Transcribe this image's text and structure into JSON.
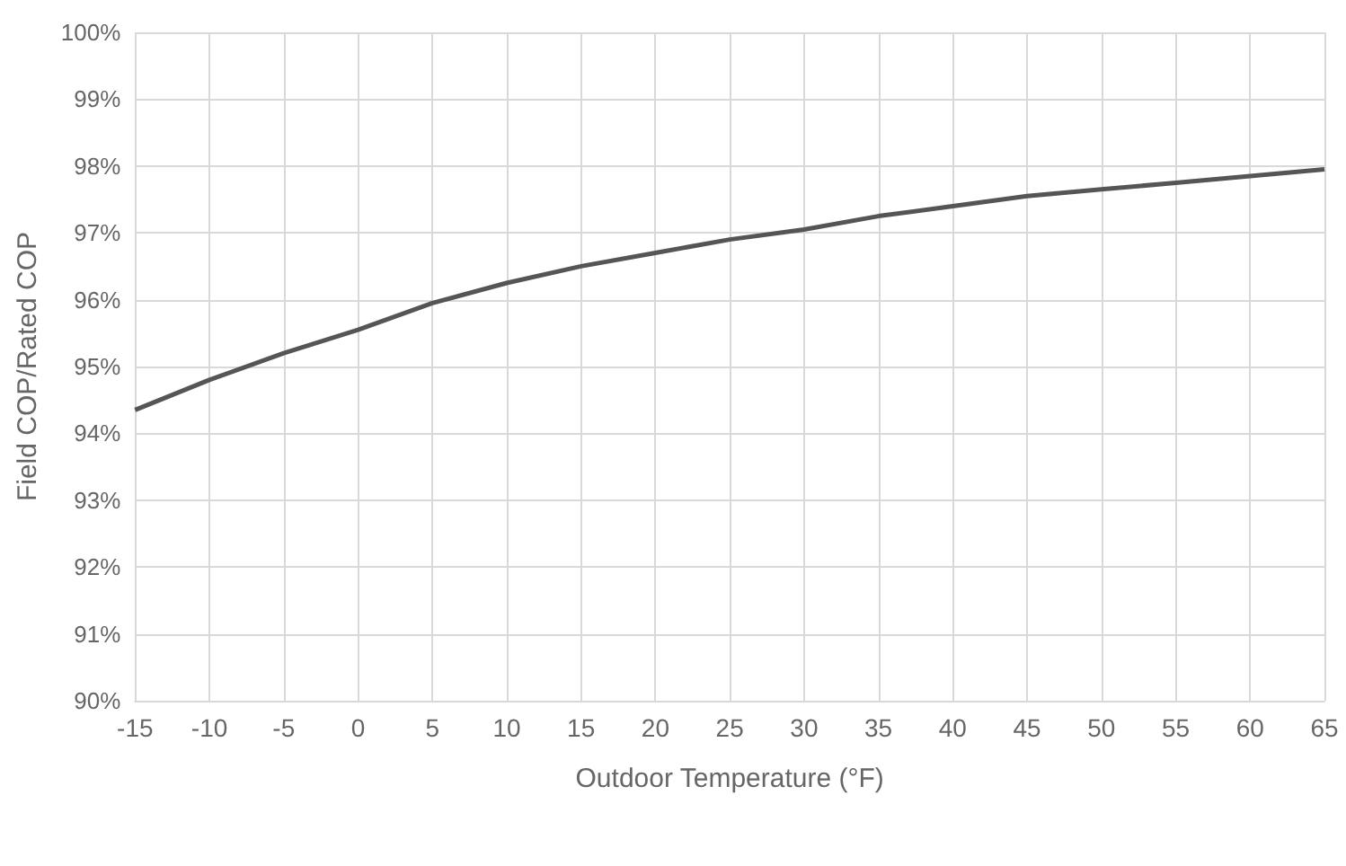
{
  "chart_data": {
    "type": "line",
    "xlabel": "Outdoor Temperature (°F)",
    "ylabel": "Field COP/Rated COP",
    "x": [
      -15,
      -10,
      -5,
      0,
      5,
      10,
      15,
      20,
      25,
      30,
      35,
      40,
      45,
      50,
      55,
      60,
      65
    ],
    "series": [
      {
        "color": "#555555",
        "values": [
          94.35,
          94.8,
          95.2,
          95.55,
          95.95,
          96.25,
          96.5,
          96.7,
          96.9,
          97.05,
          97.25,
          97.4,
          97.55,
          97.65,
          97.75,
          97.85,
          97.95
        ]
      }
    ],
    "xlim": [
      -15,
      65
    ],
    "xticks": [
      -15,
      -10,
      -5,
      0,
      5,
      10,
      15,
      20,
      25,
      30,
      35,
      40,
      45,
      50,
      55,
      60,
      65
    ],
    "ylim": [
      90,
      100
    ],
    "yticks": [
      {
        "value": 90,
        "label": "90%"
      },
      {
        "value": 91,
        "label": "91%"
      },
      {
        "value": 92,
        "label": "92%"
      },
      {
        "value": 93,
        "label": "93%"
      },
      {
        "value": 94,
        "label": "94%"
      },
      {
        "value": 95,
        "label": "95%"
      },
      {
        "value": 96,
        "label": "96%"
      },
      {
        "value": 97,
        "label": "97%"
      },
      {
        "value": 98,
        "label": "98%"
      },
      {
        "value": 99,
        "label": "99%"
      },
      {
        "value": 100,
        "label": "100%"
      }
    ],
    "grid": true,
    "marker": "none",
    "line_style": "solid"
  }
}
